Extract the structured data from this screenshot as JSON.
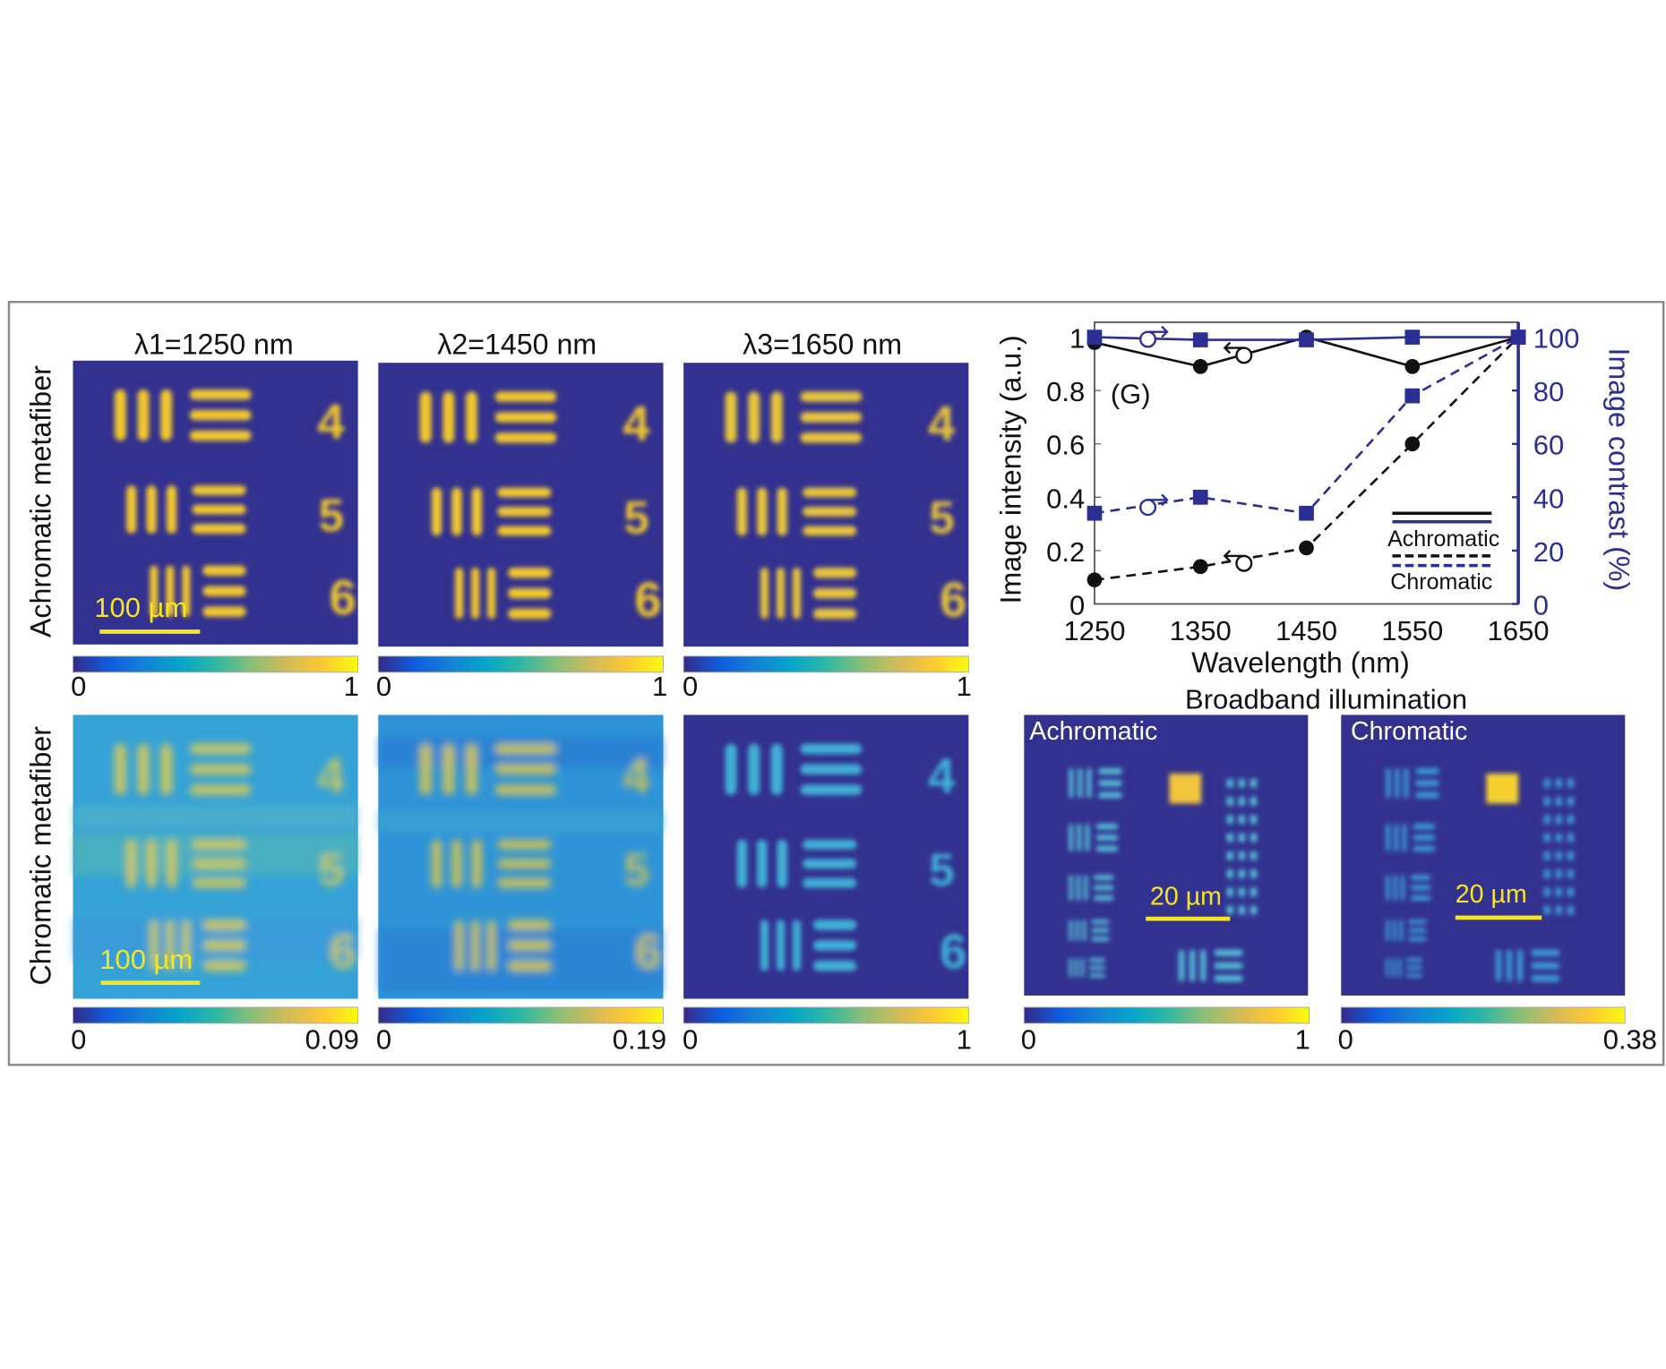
{
  "columns": [
    {
      "title": "λ1=1250 nm"
    },
    {
      "title": "λ2=1450 nm"
    },
    {
      "title": "λ3=1650 nm"
    }
  ],
  "rows": [
    {
      "label": "Achromatic metafiber",
      "scalebar": "100 µm",
      "colorbars": [
        [
          "0",
          "1"
        ],
        [
          "0",
          "1"
        ],
        [
          "0",
          "1"
        ]
      ]
    },
    {
      "label": "Chromatic metafiber",
      "scalebar": "100 µm",
      "colorbars": [
        [
          "0",
          "0.09"
        ],
        [
          "0",
          "0.19"
        ],
        [
          "0",
          "1"
        ]
      ]
    }
  ],
  "target_digits": [
    "4",
    "5",
    "6"
  ],
  "broadband": {
    "title": "Broadband illumination",
    "panels": [
      {
        "label": "Achromatic",
        "scalebar": "20 µm",
        "colorbar": [
          "0",
          "1"
        ]
      },
      {
        "label": "Chromatic",
        "scalebar": "20 µm",
        "colorbar": [
          "0",
          "0.38"
        ]
      }
    ]
  },
  "colors": {
    "colormap": [
      "#352a87",
      "#0f5cdd",
      "#1481d6",
      "#06a4ca",
      "#2eb7a4",
      "#87bf77",
      "#d1bb59",
      "#fec832",
      "#f9fb0e"
    ],
    "intensity_axis": "#111111",
    "contrast_axis": "#2b2f94",
    "scalebar": "#f5e623"
  },
  "chart_data": {
    "type": "line",
    "panel_label": "(G)",
    "x": [
      1250,
      1350,
      1450,
      1550,
      1650
    ],
    "xlabel": "Wavelength (nm)",
    "ylabel": "Image intensity (a.u.)",
    "y2label": "Image contrast (%)",
    "xlim": [
      1250,
      1650
    ],
    "ylim": [
      0,
      1
    ],
    "y2lim": [
      0,
      100
    ],
    "xticks": [
      "1250",
      "1350",
      "1450",
      "1550",
      "1650"
    ],
    "yticks": [
      "0",
      "0.2",
      "0.4",
      "0.6",
      "0.8",
      "1"
    ],
    "y2ticks": [
      "0",
      "20",
      "40",
      "60",
      "80",
      "100"
    ],
    "grid": false,
    "legend_position": "bottom-right",
    "legend": [
      "Achromatic",
      "Chromatic"
    ],
    "series": [
      {
        "name": "Achromatic",
        "axis": "left",
        "quantity": "intensity",
        "style": "solid",
        "marker": "circle",
        "color": "#111111",
        "values": [
          0.98,
          0.89,
          1.0,
          0.89,
          1.0
        ]
      },
      {
        "name": "Achromatic",
        "axis": "right",
        "quantity": "contrast",
        "style": "solid",
        "marker": "square",
        "color": "#2b2f94",
        "values": [
          100,
          99,
          99,
          100,
          100
        ]
      },
      {
        "name": "Chromatic",
        "axis": "left",
        "quantity": "intensity",
        "style": "dashed",
        "marker": "circle",
        "color": "#111111",
        "values": [
          0.09,
          0.14,
          0.21,
          0.6,
          1.0
        ]
      },
      {
        "name": "Chromatic",
        "axis": "right",
        "quantity": "contrast",
        "style": "dashed",
        "marker": "square",
        "color": "#2b2f94",
        "values": [
          34,
          40,
          34,
          78,
          100
        ]
      }
    ]
  }
}
